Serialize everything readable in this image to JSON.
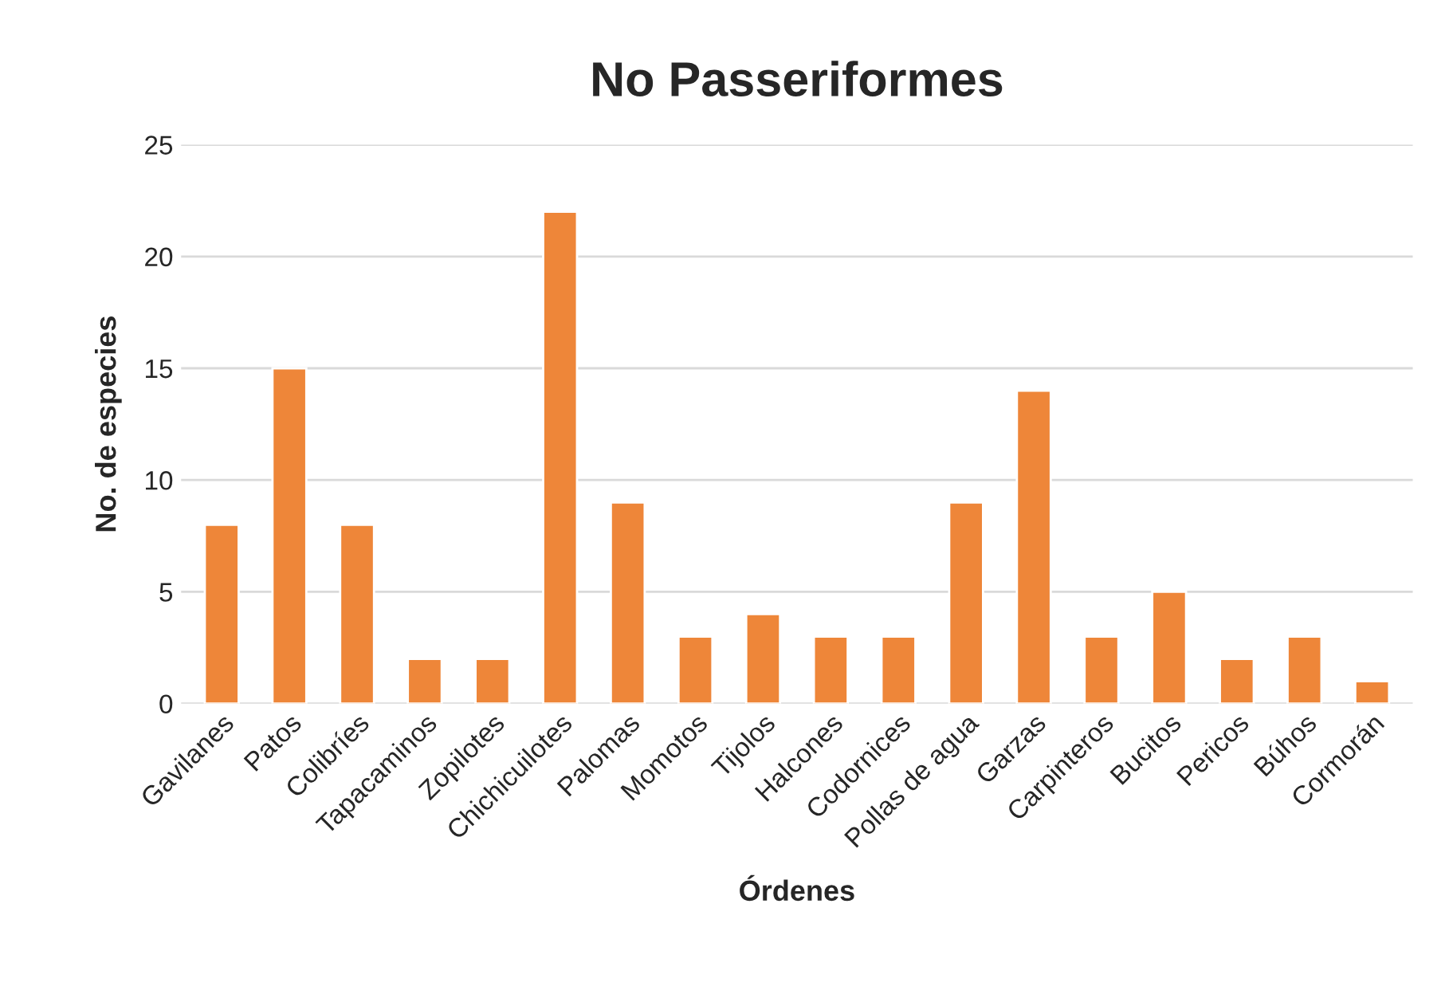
{
  "chart_data": {
    "type": "bar",
    "title": "No Passeriformes",
    "xlabel": "Órdenes",
    "ylabel": "No. de especies",
    "categories": [
      "Gavilanes",
      "Patos",
      "Colibríes",
      "Tapacaminos",
      "Zopilotes",
      "Chichicuilotes",
      "Palomas",
      "Momotos",
      "Tijolos",
      "Halcones",
      "Codornices",
      "Pollas de agua",
      "Garzas",
      "Carpinteros",
      "Bucitos",
      "Pericos",
      "Búhos",
      "Cormorán"
    ],
    "values": [
      8,
      15,
      8,
      2,
      2,
      22,
      9,
      3,
      4,
      3,
      3,
      9,
      14,
      3,
      5,
      2,
      3,
      1
    ],
    "color": "#ee8639",
    "ylim": [
      0,
      25
    ],
    "yticks": [
      0,
      5,
      10,
      15,
      20,
      25
    ],
    "grid": "y"
  }
}
